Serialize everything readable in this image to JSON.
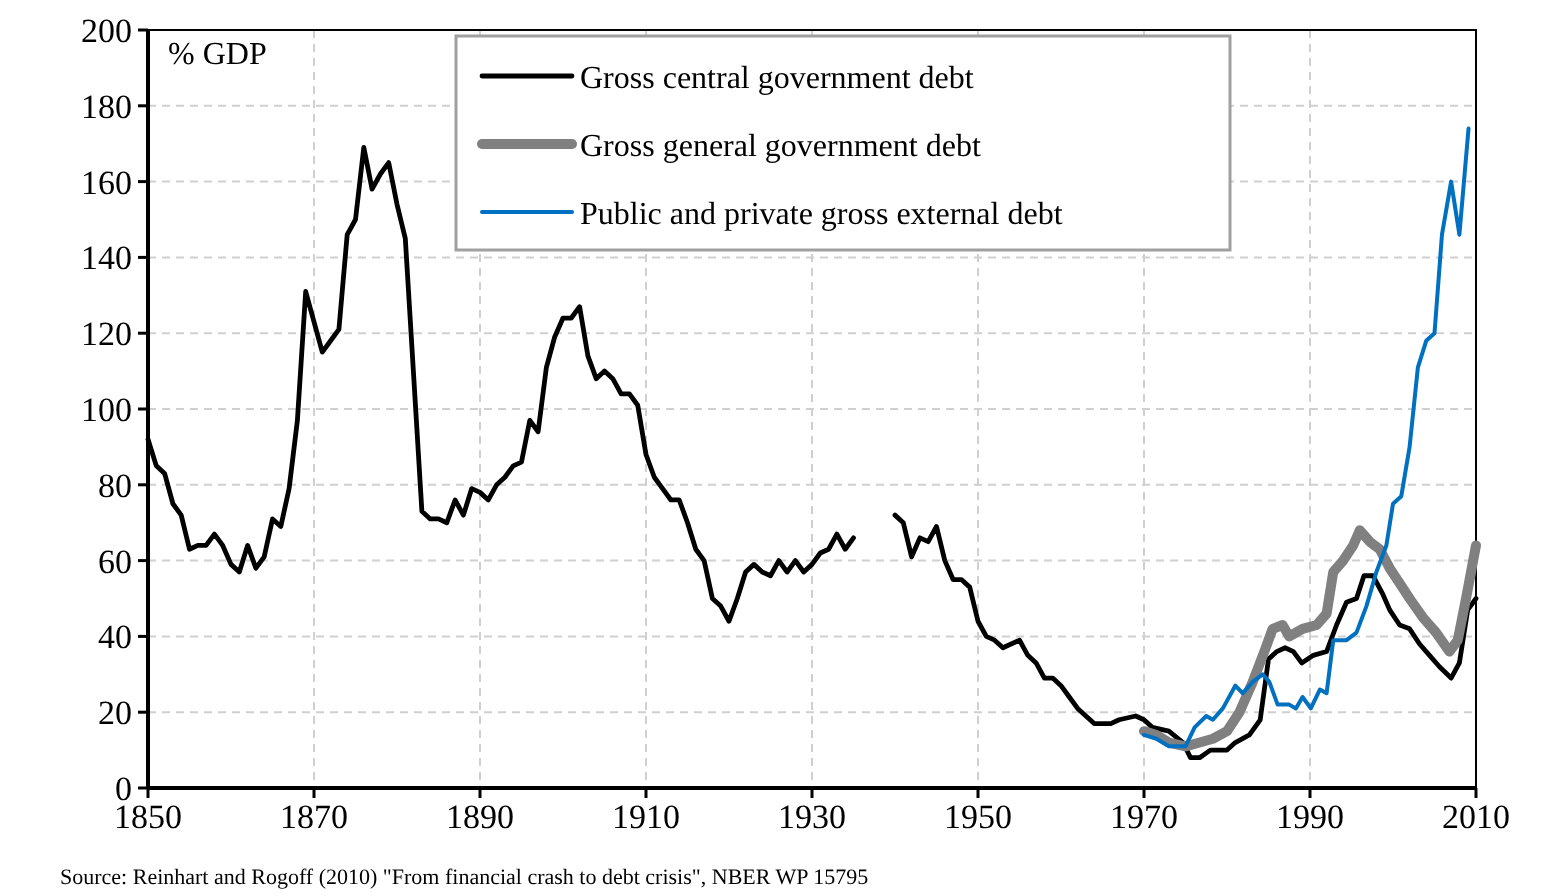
{
  "chart_data": {
    "type": "line",
    "ylabel": "% GDP",
    "xlim": [
      1850,
      2010
    ],
    "xticks": [
      1850,
      1870,
      1890,
      1910,
      1930,
      1950,
      1970,
      1990,
      2010
    ],
    "ylim": [
      0,
      200
    ],
    "yticks": [
      0,
      20,
      40,
      60,
      80,
      100,
      120,
      140,
      160,
      180,
      200
    ],
    "grid": true,
    "legend": "top",
    "line_style": "solid",
    "annotations": [
      "Source: Reinhart and Rogoff (2010) \"From financial crash to debt crisis\", NBER WP 15795"
    ],
    "series": [
      {
        "name": "Gross central government debt",
        "color": "#000000",
        "x": [
          1850,
          1851,
          1852,
          1853,
          1854,
          1855,
          1856,
          1857,
          1858,
          1859,
          1860,
          1861,
          1862,
          1863,
          1864,
          1865,
          1866,
          1867,
          1868,
          1869,
          1870,
          1871,
          1872,
          1873,
          1874,
          1875,
          1876,
          1877,
          1878,
          1879,
          1880,
          1881,
          1882,
          1883,
          1884,
          1885,
          1886,
          1887,
          1888,
          1889,
          1890,
          1891,
          1892,
          1893,
          1894,
          1895,
          1896,
          1897,
          1898,
          1899,
          1900,
          1901,
          1902,
          1903,
          1904,
          1905,
          1906,
          1907,
          1908,
          1909,
          1910,
          1911,
          1912,
          1913,
          1914,
          1915,
          1916,
          1917,
          1918,
          1919,
          1920,
          1921,
          1922,
          1923,
          1924,
          1925,
          1926,
          1927,
          1928,
          1929,
          1930,
          1931,
          1932,
          1933,
          1934,
          1935,
          1937,
          1940,
          1941,
          1942,
          1943,
          1944,
          1945,
          1946,
          1947,
          1948,
          1949,
          1950,
          1951,
          1952,
          1953,
          1955,
          1956,
          1957,
          1958,
          1959,
          1960,
          1961,
          1962,
          1963,
          1964,
          1966,
          1967,
          1969,
          1970,
          1971,
          1973,
          1974.7,
          1975.6,
          1976.7,
          1978,
          1980,
          1981,
          1982.7,
          1984,
          1985,
          1986,
          1987,
          1988,
          1989,
          1990.4,
          1992,
          1993.2,
          1994.4,
          1995.6,
          1996.5,
          1997.6,
          1998.8,
          1999.6,
          2000.8,
          2002,
          2003.2,
          2004.4,
          2005.6,
          2007,
          2008,
          2009,
          2010
        ],
        "values": [
          92,
          85,
          83,
          75,
          72,
          63,
          64,
          64,
          67,
          64,
          59,
          57,
          64,
          58,
          61,
          71,
          69,
          79,
          97,
          131,
          123,
          115,
          118,
          121,
          146,
          150,
          169,
          158,
          162,
          165,
          154,
          145,
          109,
          73,
          71,
          71,
          70,
          76,
          72,
          79,
          78,
          76,
          80,
          82,
          85,
          86,
          97,
          94,
          111,
          119,
          124,
          124,
          127,
          114,
          108,
          110,
          108,
          104,
          104,
          101,
          88,
          82,
          79,
          76,
          76,
          70,
          63,
          60,
          50,
          48,
          44,
          50,
          57,
          59,
          57,
          56,
          60,
          57,
          60,
          57,
          59,
          62,
          63,
          67,
          63,
          66,
          null,
          72,
          70,
          61,
          66,
          65,
          69,
          60,
          55,
          55,
          53,
          44,
          40,
          39,
          37,
          39,
          35,
          33,
          29,
          29,
          27,
          24,
          21,
          19,
          17,
          17,
          18,
          19,
          18,
          16,
          15,
          12,
          8,
          8,
          10,
          10,
          12,
          14,
          18,
          34,
          36,
          37,
          36,
          33,
          35,
          36,
          43,
          49,
          50,
          56,
          56,
          51,
          47,
          43,
          42,
          38,
          35,
          32,
          29,
          33,
          47,
          50
        ]
      },
      {
        "name": "Gross general government debt",
        "color": "#808080",
        "x": [
          1970,
          1971.5,
          1973,
          1975,
          1976.7,
          1978.3,
          1980,
          1981.5,
          1983.1,
          1984.5,
          1985.5,
          1986.7,
          1987.5,
          1989.1,
          1990.8,
          1992,
          1992.8,
          1994,
          1995.2,
          1996,
          1997.2,
          1998.4,
          1999.6,
          2000.8,
          2002,
          2003.6,
          2005.2,
          2006.8,
          2007.8,
          2008.8,
          2010
        ],
        "values": [
          15,
          14,
          12,
          11,
          12,
          13,
          15,
          20,
          28,
          36,
          42,
          43,
          40,
          42,
          43,
          46,
          57,
          60,
          64,
          68,
          65,
          63,
          58,
          54,
          50,
          45,
          41,
          36,
          39,
          50,
          64
        ]
      },
      {
        "name": "Public and private gross external debt",
        "color": "#0070c0",
        "x": [
          1970,
          1971.5,
          1973,
          1975,
          1976.1,
          1977.5,
          1978.3,
          1979.5,
          1981,
          1981.9,
          1983.1,
          1984.3,
          1985.1,
          1986.1,
          1987.5,
          1988.3,
          1989.1,
          1990.1,
          1991.2,
          1992,
          1992.8,
          1994.4,
          1995.6,
          1996.8,
          1998,
          1999.2,
          2000,
          2001,
          2002,
          2003,
          2004,
          2005,
          2005.9,
          2007,
          2008,
          2009.1
        ],
        "values": [
          14,
          13,
          11,
          11,
          16,
          19,
          18,
          21,
          27,
          25,
          28,
          30,
          28,
          22,
          22,
          21,
          24,
          21,
          26,
          25,
          39,
          39,
          41,
          48,
          57,
          64,
          75,
          77,
          90,
          111,
          118,
          120,
          146,
          160,
          146,
          174
        ]
      }
    ]
  }
}
